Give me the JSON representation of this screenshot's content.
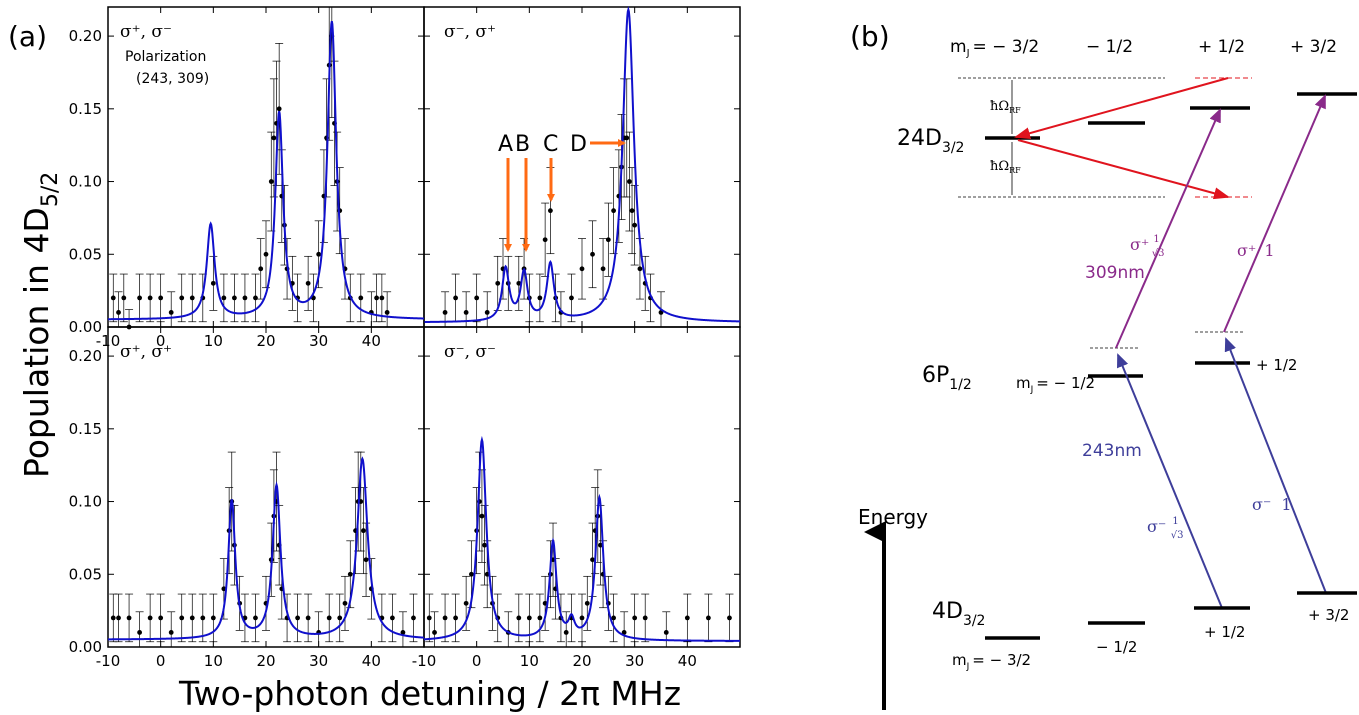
{
  "figure": {
    "label_a": "(a)",
    "label_b": "(b)",
    "xlabel": "Two-photon detuning / 2π MHz",
    "ylabel_main": "Population in 4D",
    "ylabel_sub": "5/2",
    "pol_note_line1": "Polarization",
    "pol_note_line2": "(243, 309)",
    "arrow_labels": [
      "A",
      "B",
      "C",
      "D"
    ]
  },
  "colors": {
    "fit": "#1010cc",
    "arrow": "#ff6a13",
    "data": "#000000",
    "red": "#e0141e",
    "purple": "#8a2a8a",
    "blue": "#3e3e9a"
  },
  "chart_data": [
    {
      "type": "scatter",
      "panel": "top-left",
      "polarization": "σ⁺, σ⁻",
      "xlim": [
        -10,
        50
      ],
      "ylim": [
        0,
        0.22
      ],
      "xticks": [
        "-10",
        "0",
        "10",
        "20",
        "30",
        "40"
      ],
      "yticks": [
        "0.00",
        "0.05",
        "0.10",
        "0.15",
        "0.20"
      ],
      "fit_peaks": [
        {
          "x0": 9.5,
          "amp": 0.065,
          "w": 0.9
        },
        {
          "x0": 22.5,
          "amp": 0.141,
          "w": 0.9
        },
        {
          "x0": 32.5,
          "amp": 0.204,
          "w": 1.0
        }
      ],
      "fit_baseline": 0.005,
      "points": [
        [
          -9,
          0.02
        ],
        [
          -8,
          0.01
        ],
        [
          -7,
          0.02
        ],
        [
          -6,
          0.0
        ],
        [
          -4,
          0.02
        ],
        [
          -2,
          0.02
        ],
        [
          0,
          0.02
        ],
        [
          2,
          0.01
        ],
        [
          4,
          0.02
        ],
        [
          6,
          0.02
        ],
        [
          8,
          0.02
        ],
        [
          10,
          0.03
        ],
        [
          12,
          0.02
        ],
        [
          14,
          0.02
        ],
        [
          16,
          0.02
        ],
        [
          18,
          0.02
        ],
        [
          19,
          0.04
        ],
        [
          20,
          0.05
        ],
        [
          21,
          0.1
        ],
        [
          21.5,
          0.13
        ],
        [
          22,
          0.14
        ],
        [
          22.5,
          0.15
        ],
        [
          23,
          0.09
        ],
        [
          23.5,
          0.07
        ],
        [
          24,
          0.04
        ],
        [
          25,
          0.03
        ],
        [
          26,
          0.02
        ],
        [
          28,
          0.03
        ],
        [
          29,
          0.02
        ],
        [
          30,
          0.05
        ],
        [
          31,
          0.09
        ],
        [
          31.5,
          0.13
        ],
        [
          32,
          0.18
        ],
        [
          32.5,
          0.2
        ],
        [
          33,
          0.14
        ],
        [
          33.5,
          0.1
        ],
        [
          34,
          0.08
        ],
        [
          35,
          0.04
        ],
        [
          36,
          0.02
        ],
        [
          38,
          0.02
        ],
        [
          40,
          0.01
        ],
        [
          41,
          0.02
        ],
        [
          42,
          0.02
        ],
        [
          43,
          0.01
        ]
      ]
    },
    {
      "type": "scatter",
      "panel": "top-right",
      "polarization": "σ⁻, σ⁺",
      "xlim": [
        -10,
        50
      ],
      "ylim": [
        0,
        0.22
      ],
      "fit_peaks": [
        {
          "x0": 5.5,
          "amp": 0.036,
          "w": 0.8
        },
        {
          "x0": 9.0,
          "amp": 0.033,
          "w": 0.8
        },
        {
          "x0": 14.0,
          "amp": 0.039,
          "w": 0.8
        },
        {
          "x0": 28.8,
          "amp": 0.215,
          "w": 1.3
        }
      ],
      "fit_baseline": 0.003,
      "points": [
        [
          -6,
          0.01
        ],
        [
          -4,
          0.02
        ],
        [
          -2,
          0.01
        ],
        [
          0,
          0.02
        ],
        [
          2,
          0.01
        ],
        [
          4,
          0.03
        ],
        [
          5,
          0.04
        ],
        [
          6,
          0.03
        ],
        [
          8,
          0.03
        ],
        [
          9,
          0.04
        ],
        [
          10,
          0.02
        ],
        [
          12,
          0.02
        ],
        [
          13,
          0.06
        ],
        [
          14,
          0.08
        ],
        [
          15,
          0.02
        ],
        [
          16,
          0.01
        ],
        [
          18,
          0.02
        ],
        [
          20,
          0.04
        ],
        [
          22,
          0.05
        ],
        [
          24,
          0.04
        ],
        [
          25,
          0.06
        ],
        [
          26,
          0.08
        ],
        [
          27,
          0.09
        ],
        [
          27.5,
          0.11
        ],
        [
          28,
          0.13
        ],
        [
          28.5,
          0.13
        ],
        [
          29,
          0.1
        ],
        [
          29.5,
          0.08
        ],
        [
          30,
          0.07
        ],
        [
          31,
          0.04
        ],
        [
          32,
          0.03
        ],
        [
          33,
          0.02
        ],
        [
          35,
          0.01
        ]
      ]
    },
    {
      "type": "scatter",
      "panel": "bottom-left",
      "polarization": "σ⁺, σ⁺",
      "xlim": [
        -10,
        50
      ],
      "ylim": [
        0,
        0.22
      ],
      "xticks": [
        "-10",
        "0",
        "10",
        "20",
        "30",
        "40"
      ],
      "yticks": [
        "0.00",
        "0.05",
        "0.10",
        "0.15",
        "0.20"
      ],
      "fit_peaks": [
        {
          "x0": 13.5,
          "amp": 0.095,
          "w": 0.8
        },
        {
          "x0": 22.0,
          "amp": 0.105,
          "w": 0.9
        },
        {
          "x0": 38.3,
          "amp": 0.124,
          "w": 1.2
        }
      ],
      "fit_baseline": 0.005,
      "points": [
        [
          -9,
          0.02
        ],
        [
          -8,
          0.02
        ],
        [
          -6,
          0.02
        ],
        [
          -4,
          0.01
        ],
        [
          -2,
          0.02
        ],
        [
          0,
          0.02
        ],
        [
          2,
          0.01
        ],
        [
          4,
          0.02
        ],
        [
          6,
          0.02
        ],
        [
          8,
          0.02
        ],
        [
          10,
          0.02
        ],
        [
          12,
          0.04
        ],
        [
          13,
          0.08
        ],
        [
          13.5,
          0.1
        ],
        [
          14,
          0.07
        ],
        [
          15,
          0.03
        ],
        [
          16,
          0.02
        ],
        [
          18,
          0.02
        ],
        [
          20,
          0.03
        ],
        [
          21,
          0.06
        ],
        [
          21.5,
          0.09
        ],
        [
          22,
          0.1
        ],
        [
          22.5,
          0.07
        ],
        [
          23,
          0.04
        ],
        [
          24,
          0.02
        ],
        [
          26,
          0.02
        ],
        [
          28,
          0.02
        ],
        [
          30,
          0.01
        ],
        [
          32,
          0.02
        ],
        [
          34,
          0.02
        ],
        [
          35,
          0.03
        ],
        [
          36,
          0.05
        ],
        [
          37,
          0.08
        ],
        [
          37.5,
          0.1
        ],
        [
          38,
          0.1
        ],
        [
          38.5,
          0.08
        ],
        [
          39,
          0.06
        ],
        [
          40,
          0.04
        ],
        [
          42,
          0.02
        ],
        [
          44,
          0.02
        ],
        [
          46,
          0.01
        ],
        [
          48,
          0.02
        ]
      ]
    },
    {
      "type": "scatter",
      "panel": "bottom-right",
      "polarization": "σ⁻, σ⁻",
      "xlim": [
        -10,
        50
      ],
      "ylim": [
        0,
        0.22
      ],
      "xticks": [
        "-10",
        "0",
        "10",
        "20",
        "30",
        "40"
      ],
      "fit_peaks": [
        {
          "x0": 1.0,
          "amp": 0.138,
          "w": 1.0
        },
        {
          "x0": 14.5,
          "amp": 0.067,
          "w": 0.8
        },
        {
          "x0": 18.0,
          "amp": 0.012,
          "w": 0.7
        },
        {
          "x0": 23.3,
          "amp": 0.098,
          "w": 0.9
        }
      ],
      "fit_baseline": 0.004,
      "points": [
        [
          -9,
          0.02
        ],
        [
          -8,
          0.01
        ],
        [
          -6,
          0.02
        ],
        [
          -4,
          0.02
        ],
        [
          -2,
          0.03
        ],
        [
          -1,
          0.05
        ],
        [
          0,
          0.08
        ],
        [
          0.5,
          0.1
        ],
        [
          1,
          0.09
        ],
        [
          1.5,
          0.07
        ],
        [
          2,
          0.05
        ],
        [
          3,
          0.03
        ],
        [
          4,
          0.02
        ],
        [
          6,
          0.01
        ],
        [
          8,
          0.02
        ],
        [
          10,
          0.02
        ],
        [
          12,
          0.02
        ],
        [
          13,
          0.03
        ],
        [
          14,
          0.05
        ],
        [
          14.5,
          0.06
        ],
        [
          15,
          0.04
        ],
        [
          16,
          0.02
        ],
        [
          17,
          0.01
        ],
        [
          18,
          0.02
        ],
        [
          20,
          0.02
        ],
        [
          21,
          0.03
        ],
        [
          22,
          0.06
        ],
        [
          22.5,
          0.08
        ],
        [
          23,
          0.09
        ],
        [
          23.5,
          0.07
        ],
        [
          24,
          0.05
        ],
        [
          25,
          0.03
        ],
        [
          26,
          0.02
        ],
        [
          28,
          0.01
        ],
        [
          30,
          0.02
        ],
        [
          32,
          0.02
        ],
        [
          36,
          0.01
        ],
        [
          40,
          0.02
        ],
        [
          44,
          0.02
        ],
        [
          48,
          0.02
        ]
      ]
    }
  ],
  "diagram_b": {
    "mj_header": [
      "m",
      "J",
      "= − 3/2",
      "− 1/2",
      "+ 1/2",
      "+ 3/2"
    ],
    "state_24D": "24D",
    "state_24D_sub": "3/2",
    "state_6P": "6P",
    "state_6P_sub": "1/2",
    "state_4D": "4D",
    "state_4D_sub": "3/2",
    "hbar_omega": "ħΩ",
    "hbar_omega_sub": "RF",
    "wl_309": "309nm",
    "wl_243": "243nm",
    "sigma_plus": "σ⁺",
    "sigma_minus": "σ⁻",
    "coef_1": "1",
    "coef_inv_sqrt3_num": "1",
    "coef_inv_sqrt3_den": "√3",
    "energy": "Energy",
    "mj_6P_left": "m",
    "mj_6P_left_sub": "J",
    "mj_6P_left_val": "= − 1/2",
    "mj_6P_right_val": "+ 1/2",
    "mj_4D_left": "m",
    "mj_4D_left_sub": "J",
    "mj_4D_left_val": "= − 3/2",
    "mj_4D_vals": [
      "− 1/2",
      "+ 1/2",
      "+ 3/2"
    ]
  }
}
